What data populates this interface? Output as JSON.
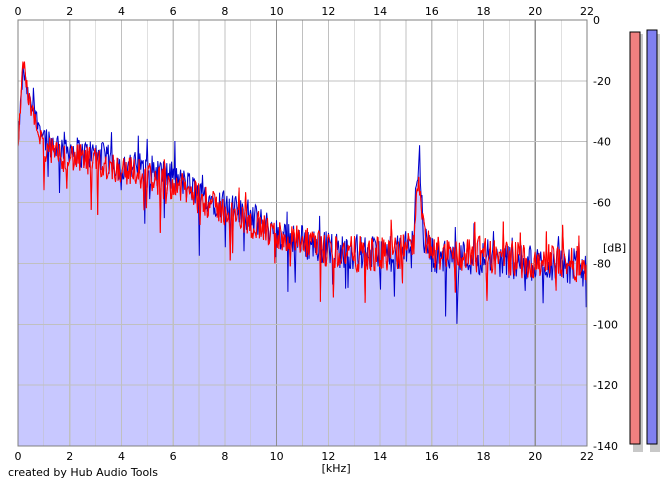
{
  "footer": "created by Hub Audio Tools",
  "chart_data": {
    "type": "line",
    "title": "",
    "xlabel": "[kHz]",
    "ylabel": "[dB]",
    "xlim": [
      0,
      22
    ],
    "ylim": [
      -140,
      0
    ],
    "x_ticks": [
      0,
      2,
      4,
      6,
      8,
      10,
      12,
      14,
      16,
      18,
      20,
      22
    ],
    "y_ticks": [
      0,
      -20,
      -40,
      -60,
      -80,
      -100,
      -120,
      -140
    ],
    "x_tick_labels": [
      "0",
      "2",
      "4",
      "6",
      "8",
      "10",
      "12",
      "14",
      "16",
      "18",
      "20",
      "22"
    ],
    "y_tick_labels": [
      "0",
      "-20",
      "-40",
      "-60",
      "-80",
      "-100",
      "-120",
      "-140"
    ],
    "grid": true,
    "x_axis_labels_top": true,
    "colors": {
      "fill": "#c8c8ff",
      "red": "#ff0000",
      "blue": "#0000cc",
      "grid": "#c0c0c0",
      "major_grid": "#909090"
    },
    "series": [
      {
        "color": "#0000cc",
        "x": [
          0,
          0.2,
          0.4,
          0.6,
          0.8,
          1,
          1.2,
          1.5,
          2,
          2.5,
          3,
          3.5,
          4,
          4.5,
          5,
          5.5,
          6,
          6.5,
          7,
          7.5,
          8,
          8.5,
          9,
          9.5,
          10,
          10.5,
          11,
          11.5,
          12,
          12.5,
          13,
          13.5,
          14,
          14.5,
          15,
          15.3,
          15.5,
          15.7,
          16,
          16.5,
          17,
          17.5,
          18,
          18.5,
          19,
          19.5,
          20,
          20.5,
          21,
          21.5,
          22
        ],
        "values": [
          -40,
          -16,
          -26,
          -30,
          -34,
          -38,
          -40,
          -41,
          -42,
          -44,
          -44,
          -46,
          -48,
          -48,
          -49,
          -50,
          -52,
          -54,
          -57,
          -59,
          -61,
          -63,
          -65,
          -67,
          -70,
          -71,
          -73,
          -74,
          -75,
          -76,
          -76,
          -77,
          -77,
          -77,
          -76,
          -70,
          -43,
          -72,
          -77,
          -78,
          -78,
          -78,
          -78,
          -79,
          -79,
          -80,
          -80,
          -80,
          -80,
          -81,
          -82
        ]
      },
      {
        "color": "#ff0000",
        "x": [
          0,
          0.2,
          0.4,
          0.6,
          0.8,
          1,
          1.2,
          1.5,
          2,
          2.5,
          3,
          3.5,
          4,
          4.5,
          5,
          5.5,
          6,
          6.5,
          7,
          7.5,
          8,
          8.5,
          9,
          9.5,
          10,
          10.5,
          11,
          11.5,
          12,
          12.5,
          13,
          13.5,
          14,
          14.5,
          15,
          15.3,
          15.5,
          15.7,
          16,
          16.5,
          17,
          17.5,
          18,
          18.5,
          19,
          19.5,
          20,
          20.5,
          21,
          21.5,
          22
        ],
        "values": [
          -42,
          -13,
          -25,
          -32,
          -37,
          -41,
          -43,
          -45,
          -45,
          -46,
          -47,
          -48,
          -49,
          -50,
          -51,
          -53,
          -54,
          -56,
          -59,
          -61,
          -63,
          -65,
          -67,
          -69,
          -71,
          -72,
          -74,
          -75,
          -76,
          -76,
          -77,
          -77,
          -77,
          -77,
          -76,
          -72,
          -54,
          -72,
          -76,
          -77,
          -77,
          -77,
          -77,
          -78,
          -78,
          -79,
          -79,
          -79,
          -79,
          -80,
          -81
        ]
      }
    ],
    "level_meters": [
      {
        "color": "#f08080",
        "level": 0
      },
      {
        "color": "#8080f0",
        "level": 0
      }
    ]
  }
}
